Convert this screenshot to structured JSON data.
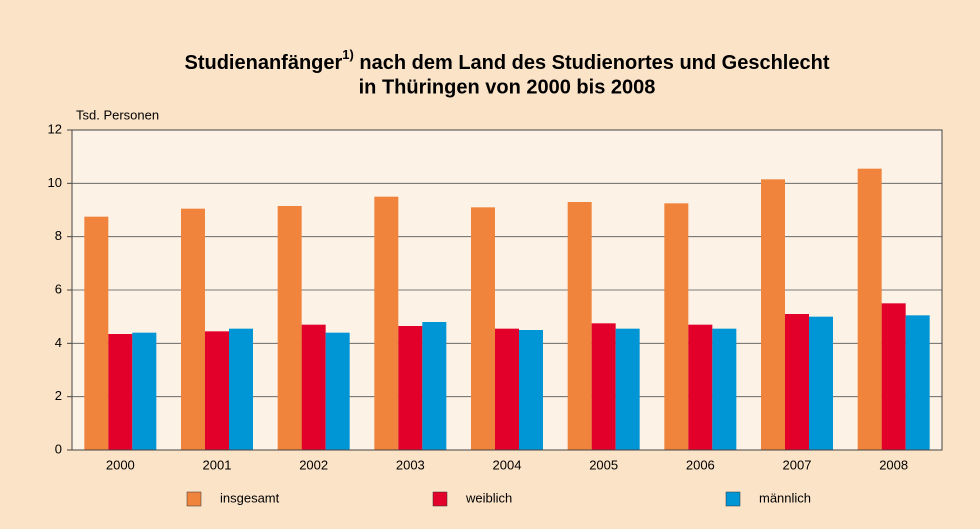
{
  "chart_data": {
    "type": "bar",
    "title": {
      "text": "Studienanfänger",
      "superscript": "1)",
      "text_after": " nach dem Land des Studienortes und Geschlecht",
      "line2": "in Thüringen von 2000 bis 2008"
    },
    "y_axis_label": "Tsd. Personen",
    "categories": [
      "2000",
      "2001",
      "2002",
      "2003",
      "2004",
      "2005",
      "2006",
      "2007",
      "2008"
    ],
    "series": [
      {
        "name": "insgesamt",
        "color": "#f0843c",
        "values": [
          8.75,
          9.05,
          9.15,
          9.5,
          9.1,
          9.3,
          9.25,
          10.15,
          10.55
        ]
      },
      {
        "name": "weiblich",
        "color": "#e2002a",
        "values": [
          4.35,
          4.45,
          4.7,
          4.65,
          4.55,
          4.75,
          4.7,
          5.1,
          5.5
        ]
      },
      {
        "name": "männlich",
        "color": "#0096d6",
        "values": [
          4.4,
          4.55,
          4.4,
          4.8,
          4.5,
          4.55,
          4.55,
          5.0,
          5.05
        ]
      }
    ],
    "ylim": [
      0,
      12
    ],
    "yticks": [
      0,
      2,
      4,
      6,
      8,
      10,
      12
    ],
    "grid": true,
    "legend": "bottom"
  }
}
